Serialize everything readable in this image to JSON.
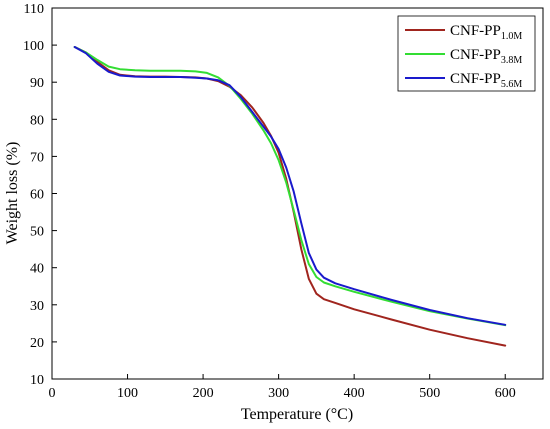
{
  "chart_data": {
    "type": "line",
    "xlabel": "Temperature (°C)",
    "ylabel": "Weight loss (%)",
    "xlim": [
      0,
      650
    ],
    "ylim": [
      10,
      110
    ],
    "xticks": [
      0,
      100,
      200,
      300,
      400,
      500,
      600
    ],
    "yticks": [
      10,
      20,
      30,
      40,
      50,
      60,
      70,
      80,
      90,
      100,
      110
    ],
    "grid": false,
    "legend_position": "top-right",
    "series": [
      {
        "name_base": "CNF-PP",
        "name_sub": "1.0M",
        "color": "#a0251e",
        "x": [
          30,
          45,
          60,
          75,
          90,
          110,
          130,
          150,
          170,
          190,
          205,
          220,
          235,
          250,
          265,
          280,
          290,
          300,
          310,
          320,
          330,
          340,
          350,
          360,
          375,
          400,
          450,
          500,
          550,
          600
        ],
        "y": [
          99.5,
          98,
          95.5,
          93.2,
          92,
          91.6,
          91.5,
          91.5,
          91.4,
          91.3,
          91,
          90.3,
          88.8,
          86.5,
          83.2,
          79,
          75.5,
          71,
          64,
          55,
          45,
          37,
          33,
          31.5,
          30.5,
          28.8,
          26,
          23.3,
          21,
          19
        ]
      },
      {
        "name_base": "CNF-PP",
        "name_sub": "3.8M",
        "color": "#33dd33",
        "x": [
          30,
          45,
          60,
          75,
          90,
          110,
          130,
          150,
          170,
          190,
          205,
          220,
          235,
          250,
          265,
          280,
          290,
          300,
          310,
          320,
          330,
          340,
          350,
          360,
          375,
          400,
          450,
          500,
          550,
          600
        ],
        "y": [
          99.5,
          98,
          96,
          94.2,
          93.5,
          93.2,
          93.1,
          93.1,
          93.1,
          92.9,
          92.5,
          91.3,
          89,
          85.5,
          81.5,
          77,
          73.5,
          69,
          63,
          55.5,
          47.5,
          41,
          37.5,
          36,
          35,
          33.5,
          30.8,
          28.3,
          26.3,
          24.5
        ]
      },
      {
        "name_base": "CNF-PP",
        "name_sub": "5.6M",
        "color": "#1a1acc",
        "x": [
          30,
          45,
          60,
          75,
          90,
          110,
          130,
          150,
          170,
          190,
          205,
          220,
          235,
          250,
          265,
          280,
          290,
          300,
          310,
          320,
          330,
          340,
          350,
          360,
          375,
          400,
          450,
          500,
          550,
          600
        ],
        "y": [
          99.5,
          97.8,
          95,
          92.8,
          91.8,
          91.5,
          91.4,
          91.4,
          91.4,
          91.2,
          91,
          90.5,
          89.2,
          86,
          82,
          78,
          75.3,
          72,
          67,
          60.5,
          52,
          44,
          39.5,
          37.3,
          35.8,
          34.2,
          31.3,
          28.6,
          26.4,
          24.6
        ]
      }
    ]
  }
}
